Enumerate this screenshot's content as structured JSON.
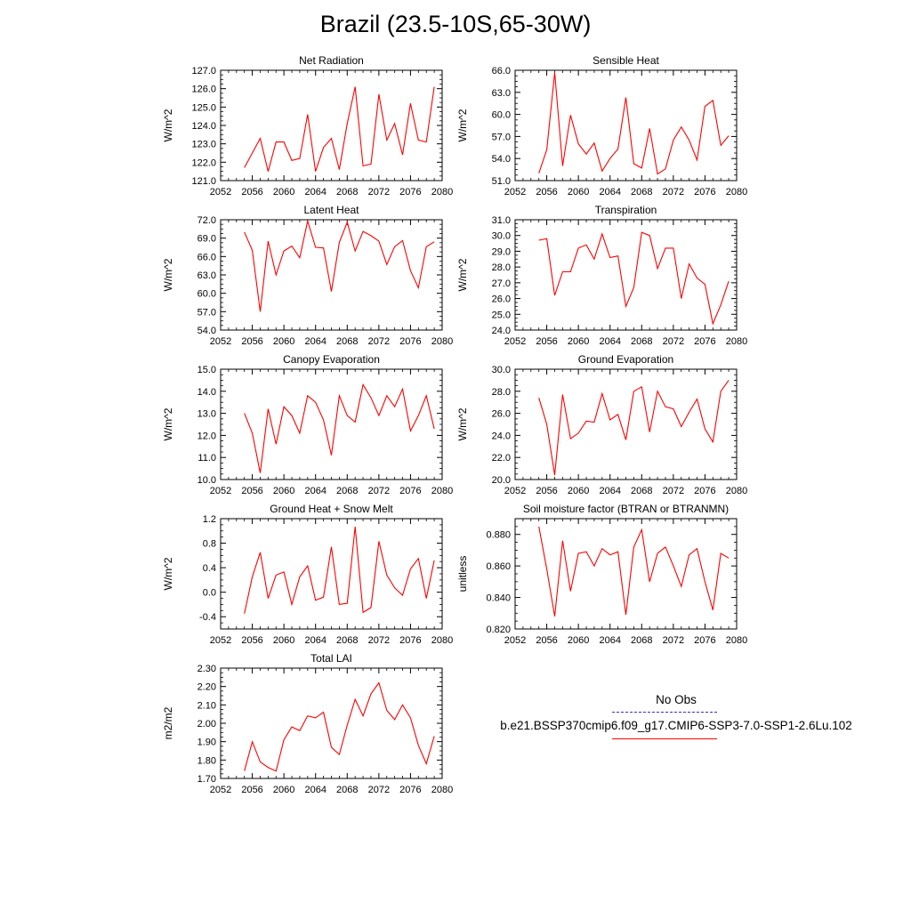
{
  "title": "Brazil (23.5-10S,65-30W)",
  "legend": {
    "items": [
      {
        "label": "No Obs",
        "color": "#3333cc",
        "dash": "dashed"
      },
      {
        "label": "b.e21.BSSP370cmip6.f09_g17.CMIP6-SSP3-7.0-SSP1-2.6Lu.102",
        "color": "#ff0000",
        "dash": "solid"
      }
    ]
  },
  "chart_data": [
    {
      "type": "line",
      "title": "Net Radiation",
      "ylabel": "W/m^2",
      "xlim": [
        2052,
        2080
      ],
      "ylim": [
        121.0,
        127.0
      ],
      "xticks": [
        "2052",
        "2056",
        "2060",
        "2064",
        "2068",
        "2072",
        "2076",
        "2080"
      ],
      "yticks": [
        "121.0",
        "122.0",
        "123.0",
        "124.0",
        "125.0",
        "126.0",
        "127.0"
      ],
      "series": [
        {
          "color": "#ff0000",
          "x": [
            2055,
            2056,
            2057,
            2058,
            2059,
            2060,
            2061,
            2062,
            2063,
            2064,
            2065,
            2066,
            2067,
            2068,
            2069,
            2070,
            2071,
            2072,
            2073,
            2074,
            2075,
            2076,
            2077,
            2078,
            2079
          ],
          "values": [
            121.7,
            122.5,
            123.3,
            121.5,
            123.1,
            123.1,
            122.1,
            122.2,
            124.6,
            121.5,
            122.8,
            123.3,
            121.6,
            124.1,
            126.1,
            121.8,
            121.9,
            125.7,
            123.2,
            124.1,
            122.4,
            125.2,
            123.2,
            123.1,
            126.1
          ]
        }
      ]
    },
    {
      "type": "line",
      "title": "Sensible Heat",
      "ylabel": "W/m^2",
      "xlim": [
        2052,
        2080
      ],
      "ylim": [
        51.0,
        66.0
      ],
      "xticks": [
        "2052",
        "2056",
        "2060",
        "2064",
        "2068",
        "2072",
        "2076",
        "2080"
      ],
      "yticks": [
        "51.0",
        "54.0",
        "57.0",
        "60.0",
        "63.0",
        "66.0"
      ],
      "series": [
        {
          "color": "#ff0000",
          "x": [
            2055,
            2056,
            2057,
            2058,
            2059,
            2060,
            2061,
            2062,
            2063,
            2064,
            2065,
            2066,
            2067,
            2068,
            2069,
            2070,
            2071,
            2072,
            2073,
            2074,
            2075,
            2076,
            2077,
            2078,
            2079
          ],
          "values": [
            52.0,
            55.2,
            65.7,
            53.0,
            59.9,
            56.0,
            54.6,
            56.1,
            52.3,
            54.0,
            55.3,
            62.3,
            53.3,
            52.7,
            58.1,
            51.9,
            52.6,
            56.5,
            58.3,
            56.5,
            53.8,
            61.1,
            61.9,
            55.8,
            57.1
          ]
        }
      ]
    },
    {
      "type": "line",
      "title": "Latent Heat",
      "ylabel": "W/m^2",
      "xlim": [
        2052,
        2080
      ],
      "ylim": [
        54.0,
        72.0
      ],
      "xticks": [
        "2052",
        "2056",
        "2060",
        "2064",
        "2068",
        "2072",
        "2076",
        "2080"
      ],
      "yticks": [
        "54.0",
        "57.0",
        "60.0",
        "63.0",
        "66.0",
        "69.0",
        "72.0"
      ],
      "series": [
        {
          "color": "#ff0000",
          "x": [
            2055,
            2056,
            2057,
            2058,
            2059,
            2060,
            2061,
            2062,
            2063,
            2064,
            2065,
            2066,
            2067,
            2068,
            2069,
            2070,
            2071,
            2072,
            2073,
            2074,
            2075,
            2076,
            2077,
            2078,
            2079
          ],
          "values": [
            70.0,
            67.0,
            57.0,
            68.5,
            63.0,
            66.9,
            67.7,
            65.8,
            71.8,
            67.5,
            67.4,
            60.3,
            68.3,
            71.6,
            66.9,
            70.1,
            69.4,
            68.5,
            64.7,
            67.6,
            68.6,
            63.7,
            60.9,
            67.6,
            68.4
          ]
        }
      ]
    },
    {
      "type": "line",
      "title": "Transpiration",
      "ylabel": "W/m^2",
      "xlim": [
        2052,
        2080
      ],
      "ylim": [
        24.0,
        31.0
      ],
      "xticks": [
        "2052",
        "2056",
        "2060",
        "2064",
        "2068",
        "2072",
        "2076",
        "2080"
      ],
      "yticks": [
        "24.0",
        "25.0",
        "26.0",
        "27.0",
        "28.0",
        "29.0",
        "30.0",
        "31.0"
      ],
      "series": [
        {
          "color": "#ff0000",
          "x": [
            2055,
            2056,
            2057,
            2058,
            2059,
            2060,
            2061,
            2062,
            2063,
            2064,
            2065,
            2066,
            2067,
            2068,
            2069,
            2070,
            2071,
            2072,
            2073,
            2074,
            2075,
            2076,
            2077,
            2078,
            2079
          ],
          "values": [
            29.7,
            29.8,
            26.2,
            27.7,
            27.7,
            29.2,
            29.4,
            28.5,
            30.1,
            28.6,
            28.7,
            25.5,
            26.7,
            30.2,
            30.0,
            27.9,
            29.2,
            29.2,
            26.0,
            28.2,
            27.3,
            26.9,
            24.4,
            25.6,
            27.1
          ]
        }
      ]
    },
    {
      "type": "line",
      "title": "Canopy Evaporation",
      "ylabel": "W/m^2",
      "xlim": [
        2052,
        2080
      ],
      "ylim": [
        10.0,
        15.0
      ],
      "xticks": [
        "2052",
        "2056",
        "2060",
        "2064",
        "2068",
        "2072",
        "2076",
        "2080"
      ],
      "yticks": [
        "10.0",
        "11.0",
        "12.0",
        "13.0",
        "14.0",
        "15.0"
      ],
      "series": [
        {
          "color": "#ff0000",
          "x": [
            2055,
            2056,
            2057,
            2058,
            2059,
            2060,
            2061,
            2062,
            2063,
            2064,
            2065,
            2066,
            2067,
            2068,
            2069,
            2070,
            2071,
            2072,
            2073,
            2074,
            2075,
            2076,
            2077,
            2078,
            2079
          ],
          "values": [
            13.0,
            12.1,
            10.3,
            13.2,
            11.6,
            13.3,
            12.9,
            12.1,
            13.8,
            13.5,
            12.7,
            11.1,
            13.8,
            12.9,
            12.6,
            14.3,
            13.7,
            12.9,
            13.8,
            13.3,
            14.1,
            12.2,
            12.9,
            13.8,
            12.3
          ]
        }
      ]
    },
    {
      "type": "line",
      "title": "Ground Evaporation",
      "ylabel": "W/m^2",
      "xlim": [
        2052,
        2080
      ],
      "ylim": [
        20.0,
        30.0
      ],
      "xticks": [
        "2052",
        "2056",
        "2060",
        "2064",
        "2068",
        "2072",
        "2076",
        "2080"
      ],
      "yticks": [
        "20.0",
        "22.0",
        "24.0",
        "26.0",
        "28.0",
        "30.0"
      ],
      "series": [
        {
          "color": "#ff0000",
          "x": [
            2055,
            2056,
            2057,
            2058,
            2059,
            2060,
            2061,
            2062,
            2063,
            2064,
            2065,
            2066,
            2067,
            2068,
            2069,
            2070,
            2071,
            2072,
            2073,
            2074,
            2075,
            2076,
            2077,
            2078,
            2079
          ],
          "values": [
            27.4,
            25.0,
            20.4,
            27.7,
            23.7,
            24.2,
            25.3,
            25.2,
            27.8,
            25.4,
            25.9,
            23.6,
            28.0,
            28.4,
            24.3,
            28.0,
            26.6,
            26.4,
            24.8,
            26.1,
            27.3,
            24.6,
            23.4,
            28.0,
            29.0
          ]
        }
      ]
    },
    {
      "type": "line",
      "title": "Ground Heat + Snow Melt",
      "ylabel": "W/m^2",
      "xlim": [
        2052,
        2080
      ],
      "ylim": [
        -0.6,
        1.2
      ],
      "xticks": [
        "2052",
        "2056",
        "2060",
        "2064",
        "2068",
        "2072",
        "2076",
        "2080"
      ],
      "yticks": [
        "-0.4",
        "0.0",
        "0.4",
        "0.8",
        "1.2"
      ],
      "series": [
        {
          "color": "#ff0000",
          "x": [
            2055,
            2056,
            2057,
            2058,
            2059,
            2060,
            2061,
            2062,
            2063,
            2064,
            2065,
            2066,
            2067,
            2068,
            2069,
            2070,
            2071,
            2072,
            2073,
            2074,
            2075,
            2076,
            2077,
            2078,
            2079
          ],
          "values": [
            -0.35,
            0.25,
            0.65,
            -0.1,
            0.28,
            0.33,
            -0.2,
            0.25,
            0.43,
            -0.13,
            -0.08,
            0.74,
            -0.2,
            -0.18,
            1.07,
            -0.33,
            -0.25,
            0.83,
            0.28,
            0.07,
            -0.05,
            0.38,
            0.55,
            -0.1,
            0.52
          ]
        }
      ]
    },
    {
      "type": "line",
      "title": "Soil moisture factor (BTRAN or BTRANMN)",
      "ylabel": "unitless",
      "xlim": [
        2052,
        2080
      ],
      "ylim": [
        0.82,
        0.89
      ],
      "xticks": [
        "2052",
        "2056",
        "2060",
        "2064",
        "2068",
        "2072",
        "2076",
        "2080"
      ],
      "yticks": [
        "0.820",
        "0.840",
        "0.860",
        "0.880"
      ],
      "series": [
        {
          "color": "#ff0000",
          "x": [
            2055,
            2056,
            2057,
            2058,
            2059,
            2060,
            2061,
            2062,
            2063,
            2064,
            2065,
            2066,
            2067,
            2068,
            2069,
            2070,
            2071,
            2072,
            2073,
            2074,
            2075,
            2076,
            2077,
            2078,
            2079
          ],
          "values": [
            0.885,
            0.858,
            0.828,
            0.876,
            0.844,
            0.868,
            0.869,
            0.86,
            0.871,
            0.867,
            0.869,
            0.829,
            0.872,
            0.883,
            0.85,
            0.868,
            0.872,
            0.86,
            0.847,
            0.867,
            0.871,
            0.85,
            0.832,
            0.868,
            0.865
          ]
        }
      ]
    },
    {
      "type": "line",
      "title": "Total LAI",
      "ylabel": "m2/m2",
      "xlim": [
        2052,
        2080
      ],
      "ylim": [
        1.7,
        2.3
      ],
      "xticks": [
        "2052",
        "2056",
        "2060",
        "2064",
        "2068",
        "2072",
        "2076",
        "2080"
      ],
      "yticks": [
        "1.70",
        "1.80",
        "1.90",
        "2.00",
        "2.10",
        "2.20",
        "2.30"
      ],
      "series": [
        {
          "color": "#ff0000",
          "x": [
            2055,
            2056,
            2057,
            2058,
            2059,
            2060,
            2061,
            2062,
            2063,
            2064,
            2065,
            2066,
            2067,
            2068,
            2069,
            2070,
            2071,
            2072,
            2073,
            2074,
            2075,
            2076,
            2077,
            2078,
            2079
          ],
          "values": [
            1.74,
            1.9,
            1.79,
            1.76,
            1.74,
            1.91,
            1.98,
            1.96,
            2.04,
            2.03,
            2.06,
            1.87,
            1.83,
            1.99,
            2.13,
            2.04,
            2.16,
            2.22,
            2.07,
            2.02,
            2.1,
            2.03,
            1.88,
            1.78,
            1.93
          ]
        }
      ]
    }
  ]
}
